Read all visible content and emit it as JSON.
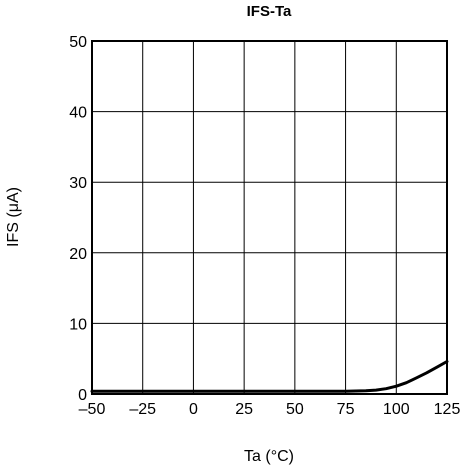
{
  "chart_data": {
    "type": "line",
    "title": "IFS-Ta",
    "xlabel": "Ta (°C)",
    "ylabel": "IFS (μA)",
    "xlim": [
      -50,
      125
    ],
    "ylim": [
      0,
      50
    ],
    "xticks": [
      -50,
      -25,
      0,
      25,
      50,
      75,
      100,
      125
    ],
    "yticks": [
      0,
      10,
      20,
      30,
      40,
      50
    ],
    "xtick_labels": [
      "–50",
      "–25",
      "0",
      "25",
      "50",
      "75",
      "100",
      "125"
    ],
    "ytick_labels": [
      "0",
      "10",
      "20",
      "30",
      "40",
      "50"
    ],
    "grid": true,
    "series": [
      {
        "x": [
          -50,
          -25,
          0,
          25,
          50,
          75,
          85,
          90,
          95,
          100,
          105,
          110,
          115,
          120,
          125
        ],
        "y": [
          0.4,
          0.4,
          0.4,
          0.4,
          0.4,
          0.4,
          0.45,
          0.55,
          0.75,
          1.1,
          1.6,
          2.3,
          3.0,
          3.8,
          4.6
        ]
      }
    ]
  }
}
